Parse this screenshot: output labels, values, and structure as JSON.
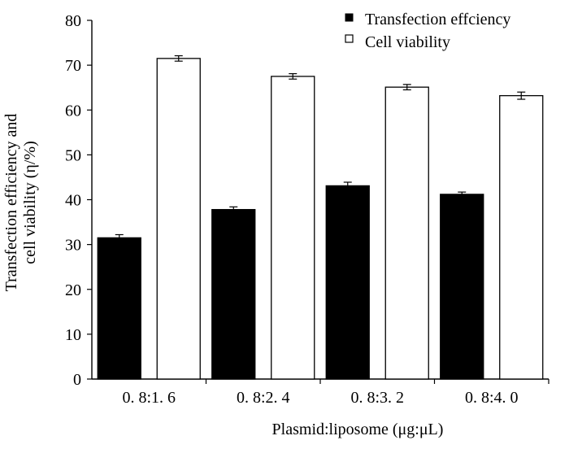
{
  "chart_data": {
    "type": "bar",
    "categories": [
      "0.8:1.6",
      "0.8:2.4",
      "0.8:3.2",
      "0.8:4.0"
    ],
    "category_labels": [
      "0. 8:1. 6",
      "0. 8:2. 4",
      "0. 8:3. 2",
      "0. 8:4. 0"
    ],
    "series": [
      {
        "name": "Transfection effciency",
        "values": [
          31.5,
          37.8,
          43.1,
          41.2
        ],
        "errors": [
          0.7,
          0.6,
          0.8,
          0.5
        ],
        "fill": "#000000"
      },
      {
        "name": "Cell viability",
        "values": [
          71.5,
          67.5,
          65.1,
          63.2
        ],
        "errors": [
          0.6,
          0.6,
          0.6,
          0.8
        ],
        "fill": "#ffffff"
      }
    ],
    "ylim": [
      0,
      80
    ],
    "yticks": [
      0,
      10,
      20,
      30,
      40,
      50,
      60,
      70,
      80
    ],
    "xlabel": "Plasmid:liposome (μg:μL)",
    "ylabel_line1": "Transfection efficiency and",
    "ylabel_line2": "cell viability (η/%)",
    "legend_position": "top-right",
    "grid": false,
    "error_bars": true
  }
}
